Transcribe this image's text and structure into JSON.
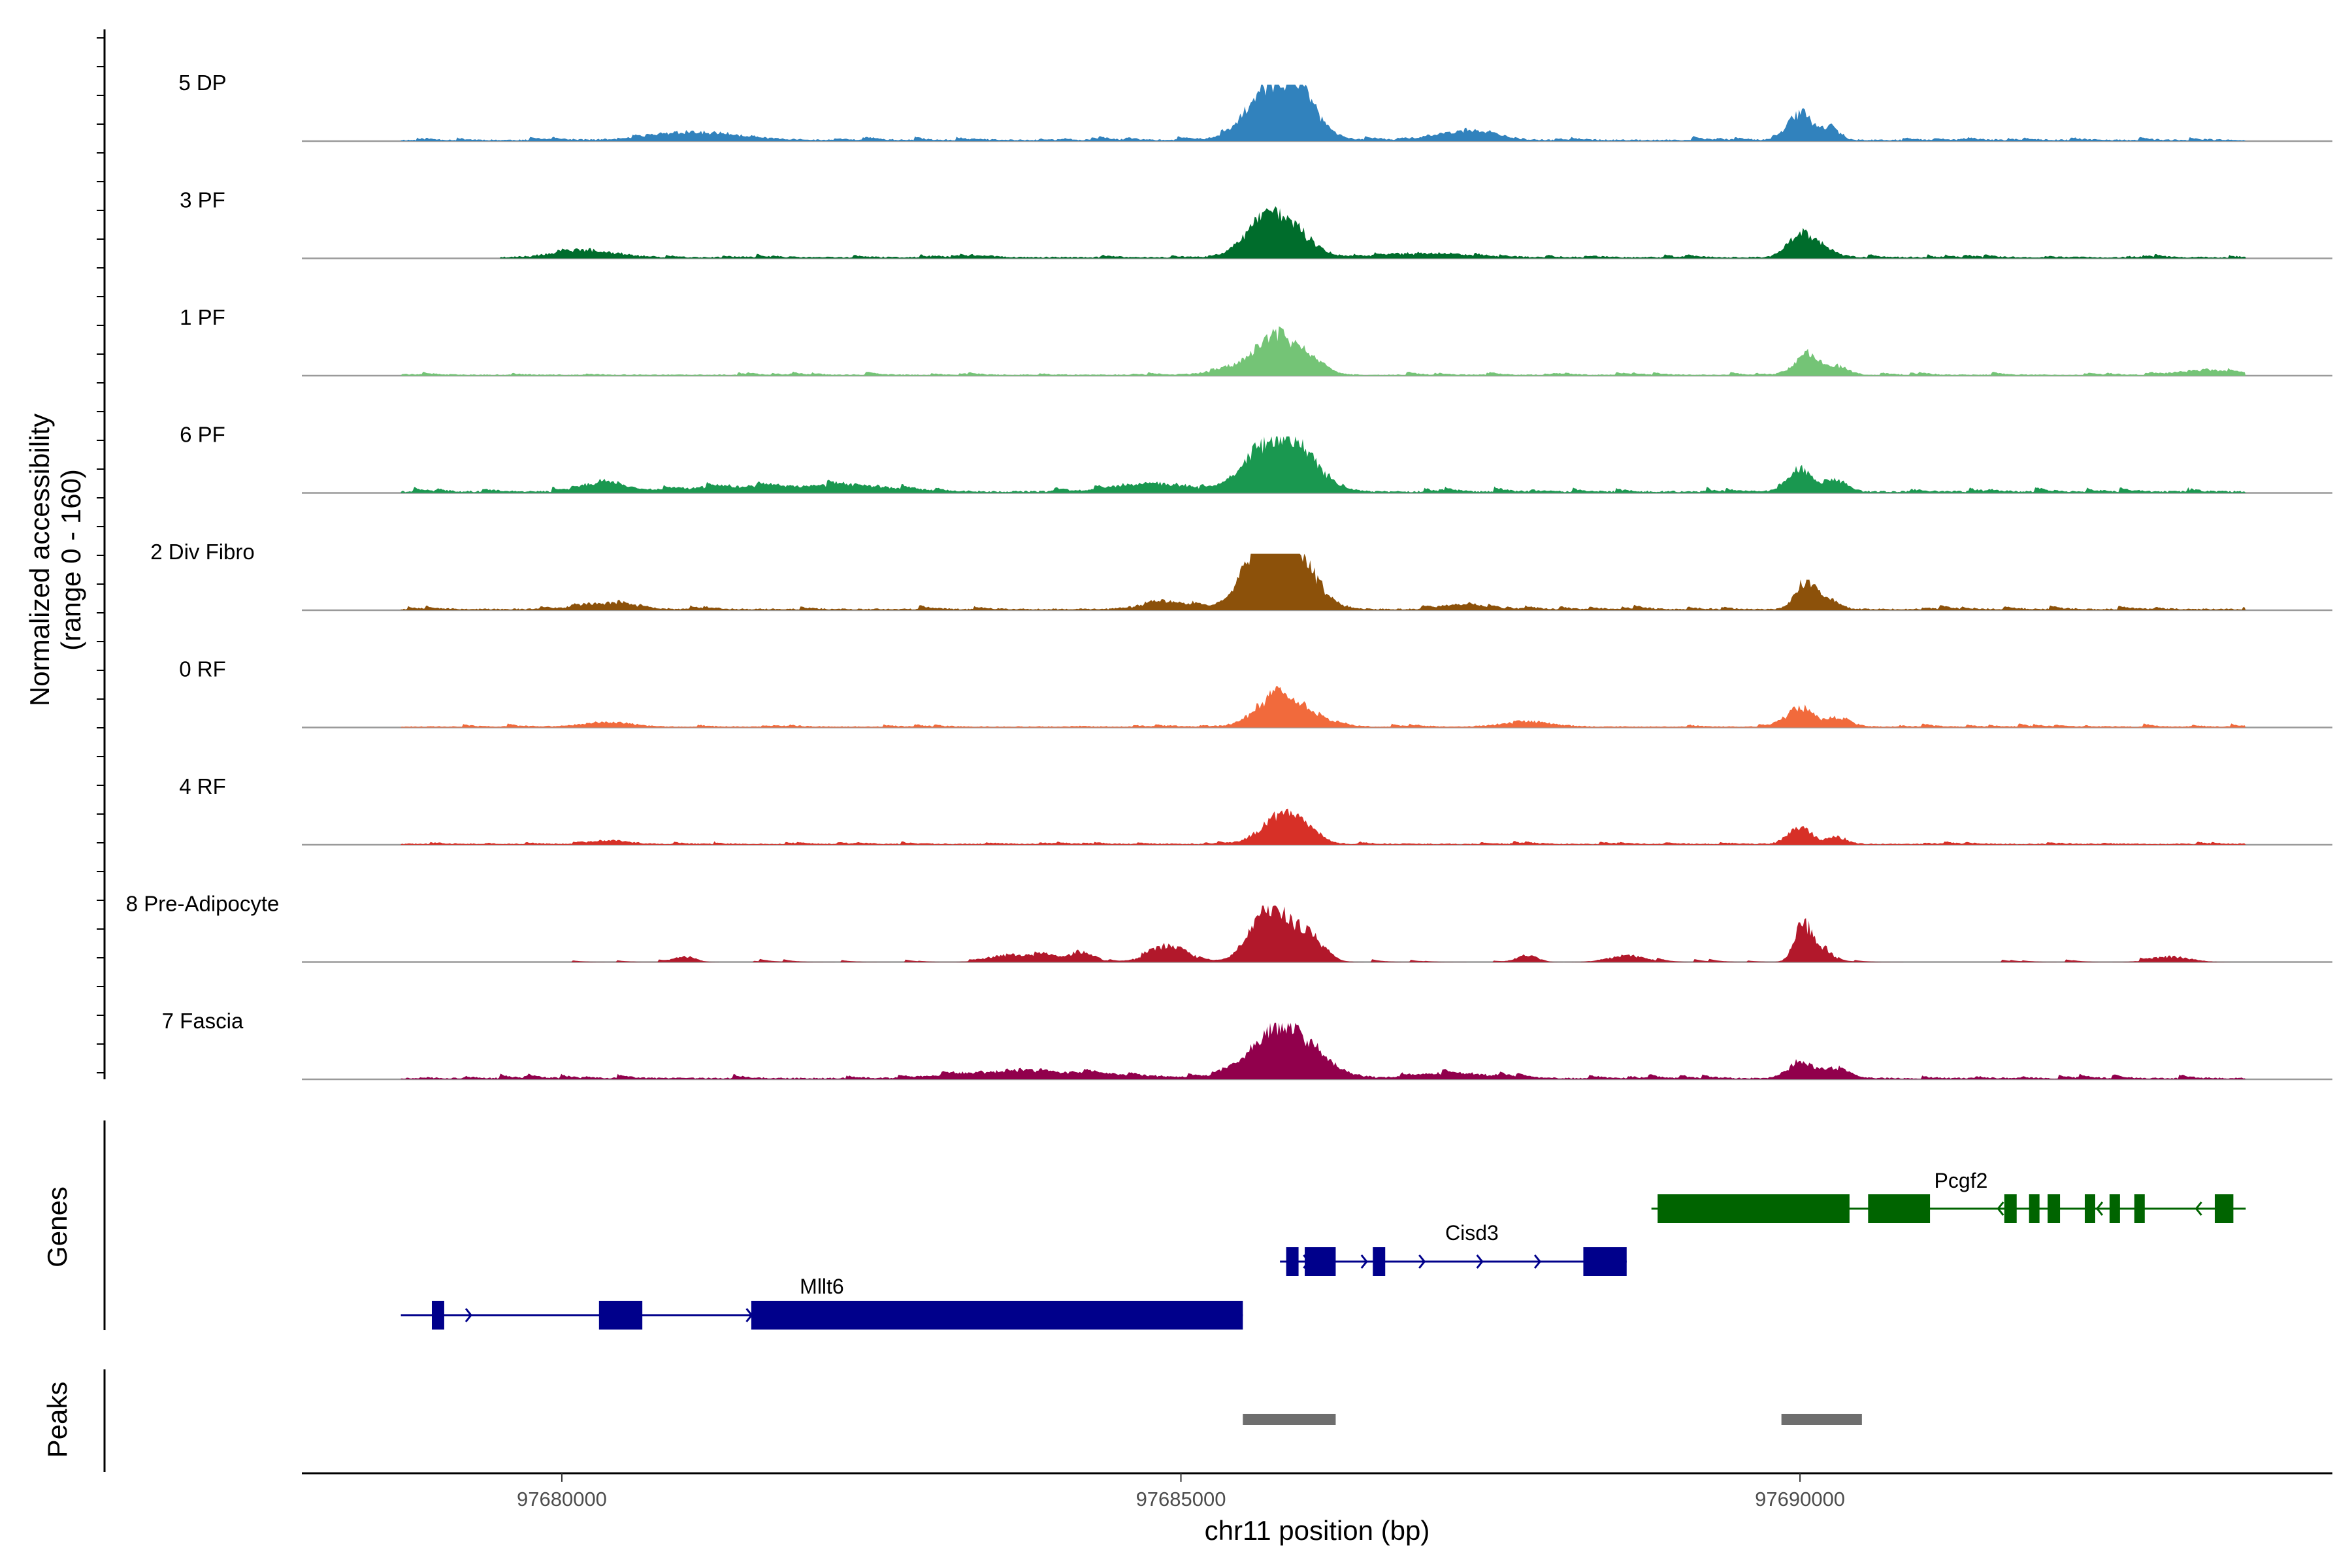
{
  "chart_data": {
    "type": "area",
    "title": "",
    "xlabel": "chr11 position (bp)",
    "ylabel_line1": "Normalized accessibility",
    "ylabel_line2": "(range 0 - 160)",
    "y_range": [
      0,
      160
    ],
    "x_range": [
      97677900,
      97694300
    ],
    "x_ticks": [
      97680000,
      97685000,
      97690000
    ],
    "x_tick_labels": [
      "97680000",
      "97685000",
      "97690000"
    ],
    "genes_label": "Genes",
    "peaks_label": "Peaks",
    "tracks": [
      {
        "name": "5 DP",
        "color": "#3182bd",
        "start": 97678700,
        "end": 97693600,
        "baseline": 4,
        "noise": 7,
        "seed": 11,
        "peaks": [
          [
            97685800,
            125,
            220
          ],
          [
            97685650,
            40,
            150
          ],
          [
            97685980,
            55,
            120
          ],
          [
            97690000,
            75,
            90
          ],
          [
            97690250,
            35,
            70
          ],
          [
            97681100,
            22,
            350
          ],
          [
            97687300,
            25,
            220
          ]
        ]
      },
      {
        "name": "3 PF",
        "color": "#006d2c",
        "start": 97679500,
        "end": 97693600,
        "baseline": 4,
        "noise": 6,
        "seed": 23,
        "peaks": [
          [
            97685800,
            105,
            200
          ],
          [
            97685650,
            35,
            150
          ],
          [
            97690000,
            65,
            100
          ],
          [
            97690200,
            25,
            80
          ],
          [
            97680200,
            20,
            250
          ],
          [
            97687000,
            12,
            300
          ]
        ]
      },
      {
        "name": "1 PF",
        "color": "#74c476",
        "start": 97678700,
        "end": 97693600,
        "baseline": 3,
        "noise": 6,
        "seed": 37,
        "peaks": [
          [
            97685780,
            100,
            150
          ],
          [
            97685500,
            25,
            200
          ],
          [
            97686050,
            35,
            120
          ],
          [
            97690050,
            60,
            90
          ],
          [
            97690300,
            25,
            90
          ],
          [
            97693300,
            15,
            200
          ]
        ]
      },
      {
        "name": "6 PF",
        "color": "#1a9850",
        "start": 97678700,
        "end": 97693600,
        "baseline": 5,
        "noise": 9,
        "seed": 41,
        "peaks": [
          [
            97685850,
            140,
            220
          ],
          [
            97685600,
            45,
            160
          ],
          [
            97690000,
            60,
            100
          ],
          [
            97690300,
            30,
            80
          ],
          [
            97680350,
            22,
            150
          ],
          [
            97681600,
            15,
            600
          ],
          [
            97682400,
            12,
            300
          ],
          [
            97684800,
            22,
            300
          ]
        ]
      },
      {
        "name": "2 Div Fibro",
        "color": "#8c510a",
        "start": 97678700,
        "end": 97693600,
        "baseline": 4,
        "noise": 8,
        "seed": 53,
        "peaks": [
          [
            97685820,
            230,
            200
          ],
          [
            97685600,
            60,
            140
          ],
          [
            97690050,
            80,
            80
          ],
          [
            97690250,
            25,
            80
          ],
          [
            97680350,
            18,
            200
          ],
          [
            97684900,
            20,
            200
          ],
          [
            97687300,
            15,
            150
          ]
        ]
      },
      {
        "name": "0 RF",
        "color": "#f16a3c",
        "start": 97678700,
        "end": 97693600,
        "baseline": 3,
        "noise": 6,
        "seed": 61,
        "peaks": [
          [
            97685750,
            75,
            160
          ],
          [
            97686000,
            35,
            180
          ],
          [
            97690000,
            55,
            100
          ],
          [
            97690300,
            25,
            100
          ],
          [
            97680350,
            12,
            200
          ],
          [
            97687800,
            14,
            200
          ]
        ]
      },
      {
        "name": "4 RF",
        "color": "#d73027",
        "start": 97678700,
        "end": 97693600,
        "baseline": 3,
        "noise": 5,
        "seed": 73,
        "peaks": [
          [
            97685800,
            80,
            150
          ],
          [
            97686000,
            30,
            120
          ],
          [
            97690000,
            50,
            90
          ],
          [
            97690300,
            20,
            80
          ],
          [
            97680400,
            10,
            150
          ]
        ]
      },
      {
        "name": "8 Pre-Adipocyte",
        "color": "#b2182b",
        "start": 97679800,
        "end": 97693600,
        "baseline": 0,
        "noise": 6,
        "seed": 89,
        "peaks": [
          [
            97685800,
            115,
            180
          ],
          [
            97685650,
            60,
            120
          ],
          [
            97686080,
            40,
            100
          ],
          [
            97690030,
            110,
            70
          ],
          [
            97690200,
            35,
            60
          ],
          [
            97684900,
            45,
            150
          ],
          [
            97684200,
            30,
            100
          ],
          [
            97683900,
            20,
            100
          ],
          [
            97683600,
            20,
            150
          ],
          [
            97681000,
            15,
            80
          ],
          [
            97687800,
            20,
            80
          ],
          [
            97688600,
            18,
            150
          ],
          [
            97693000,
            15,
            150
          ]
        ]
      },
      {
        "name": "7 Fascia",
        "color": "#91004c",
        "start": 97678700,
        "end": 97693600,
        "baseline": 4,
        "noise": 8,
        "seed": 97,
        "peaks": [
          [
            97685830,
            120,
            200
          ],
          [
            97685600,
            30,
            200
          ],
          [
            97686100,
            30,
            200
          ],
          [
            97690000,
            45,
            100
          ],
          [
            97690300,
            25,
            80
          ],
          [
            97684100,
            15,
            500
          ],
          [
            97683400,
            12,
            300
          ],
          [
            97687200,
            14,
            300
          ]
        ]
      }
    ],
    "genes": [
      {
        "name": "Mllt6",
        "color": "#00008b",
        "strand": "+",
        "start": 97678700,
        "end": 97685500,
        "exons": [
          [
            97678950,
            97679050
          ],
          [
            97680300,
            97680650
          ],
          [
            97681530,
            97685500
          ]
        ]
      },
      {
        "name": "Cisd3",
        "color": "#00008b",
        "strand": "+",
        "start": 97685800,
        "end": 97688600,
        "exons": [
          [
            97685850,
            97685950
          ],
          [
            97686000,
            97686250
          ],
          [
            97686550,
            97686650
          ],
          [
            97688250,
            97688600
          ]
        ]
      },
      {
        "name": "Pcgf2",
        "color": "#006400",
        "strand": "-",
        "start": 97688800,
        "end": 97693600,
        "exons": [
          [
            97688850,
            97690400
          ],
          [
            97690550,
            97691050
          ],
          [
            97691650,
            97691750
          ],
          [
            97691850,
            97691920
          ],
          [
            97692000,
            97692100
          ],
          [
            97692300,
            97692350
          ],
          [
            97692500,
            97692560
          ],
          [
            97692700,
            97692780
          ],
          [
            97693350,
            97693500
          ]
        ]
      }
    ],
    "peaks": [
      [
        97685500,
        97686250
      ],
      [
        97689850,
        97690500
      ]
    ]
  }
}
